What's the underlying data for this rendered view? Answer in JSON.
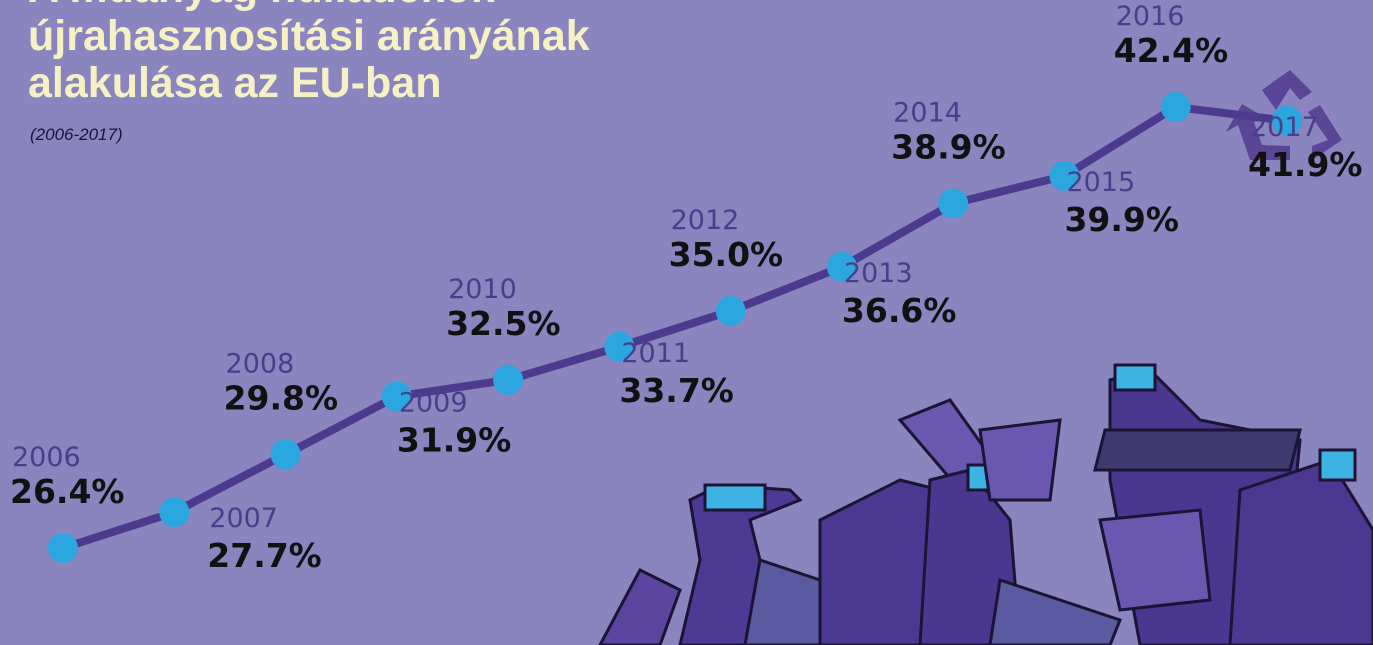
{
  "chart_data": {
    "type": "line",
    "title_lines": [
      "A műanyag hulladékok",
      "újrahasznosítási arányának",
      "alakulása az EU-ban"
    ],
    "subtitle": "(2006-2017)",
    "categories": [
      "2006",
      "2007",
      "2008",
      "2009",
      "2010",
      "2011",
      "2012",
      "2013",
      "2014",
      "2015",
      "2016",
      "2017"
    ],
    "values": [
      26.4,
      27.7,
      29.8,
      31.9,
      32.5,
      33.7,
      35.0,
      36.6,
      38.9,
      39.9,
      42.4,
      41.9
    ],
    "value_labels": [
      "26.4%",
      "27.7%",
      "29.8%",
      "31.9%",
      "32.5%",
      "33.7%",
      "35.0%",
      "36.6%",
      "38.9%",
      "39.9%",
      "42.4%",
      "41.9%"
    ],
    "line_color": "#4b3a8e",
    "marker_color": "#2ba6df"
  }
}
